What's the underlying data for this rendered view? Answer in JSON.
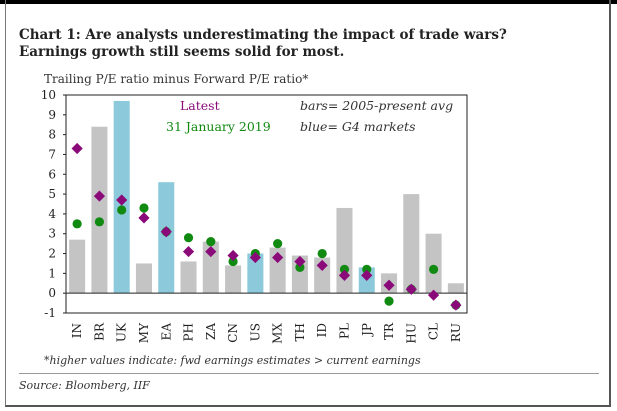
{
  "title": "Chart 1:  Are analysts underestimating the impact of trade wars?  Earnings growth still seems solid for most.",
  "footnote": "*higher values indicate: fwd earnings estimates > current earnings",
  "source": "Source: Bloomberg, IIF",
  "legend": {
    "latest": "Latest",
    "date": "31 January 2019",
    "bars": "bars= 2005-present avg",
    "blue": "blue= G4 markets"
  },
  "colors": {
    "bar_gray": "#c4c4c4",
    "bar_blue": "#8ccadb",
    "latest_diamond": "#8b0a7a",
    "date_dot": "#118a11"
  },
  "chart_data": {
    "type": "bar",
    "ylabel": "Trailing P/E ratio minus Forward P/E ratio*",
    "ylim": [
      -1,
      10
    ],
    "yticks": [
      -1,
      0,
      1,
      2,
      3,
      4,
      5,
      6,
      7,
      8,
      9,
      10
    ],
    "categories": [
      "IN",
      "BR",
      "UK",
      "MY",
      "EA",
      "PH",
      "ZA",
      "CN",
      "US",
      "MX",
      "TH",
      "ID",
      "PL",
      "JP",
      "TR",
      "HU",
      "CL",
      "RU"
    ],
    "g4": [
      "UK",
      "EA",
      "US",
      "JP"
    ],
    "series": [
      {
        "name": "2005-present avg",
        "kind": "bar",
        "values": [
          2.7,
          8.4,
          9.7,
          1.5,
          5.6,
          1.6,
          2.6,
          1.4,
          2.0,
          2.3,
          1.9,
          1.8,
          4.3,
          1.3,
          1.0,
          5.0,
          3.0,
          0.5
        ]
      },
      {
        "name": "Latest",
        "kind": "diamond",
        "values": [
          7.3,
          4.9,
          4.7,
          3.8,
          3.1,
          2.1,
          2.1,
          1.9,
          1.8,
          1.8,
          1.6,
          1.4,
          0.9,
          0.9,
          0.4,
          0.2,
          -0.1,
          -0.6
        ]
      },
      {
        "name": "31 January 2019",
        "kind": "dot",
        "values": [
          3.5,
          3.6,
          4.2,
          4.3,
          3.1,
          2.8,
          2.6,
          1.6,
          2.0,
          2.5,
          1.3,
          2.0,
          1.2,
          1.2,
          -0.4,
          0.2,
          1.2,
          -0.6
        ]
      }
    ]
  }
}
